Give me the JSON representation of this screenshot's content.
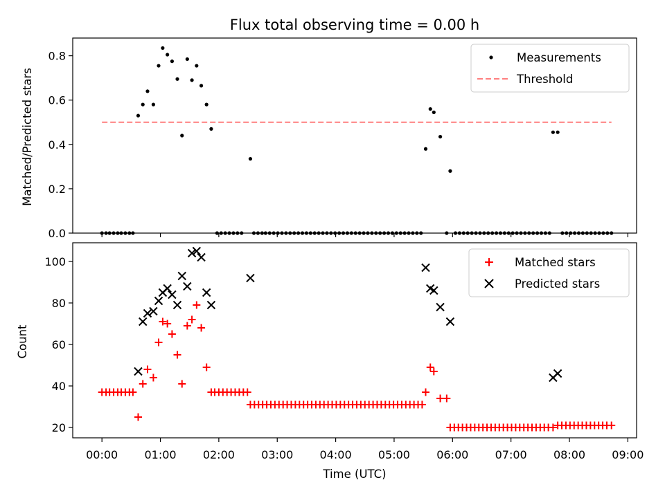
{
  "chart_data": [
    {
      "type": "scatter",
      "title": "Flux total observing time = 0.00 h",
      "xlabel": "",
      "ylabel": "Matched/Predicted stars",
      "xlim_hours": [
        -0.5,
        9.15
      ],
      "ylim": [
        0,
        0.88
      ],
      "yticks": [
        0.0,
        0.2,
        0.4,
        0.6,
        0.8
      ],
      "ytick_labels": [
        "0.0",
        "0.2",
        "0.4",
        "0.6",
        "0.8"
      ],
      "legend_position": "top-right",
      "legend": [
        "Measurements",
        "Threshold"
      ],
      "series": [
        {
          "name": "Measurements",
          "color": "#000000",
          "marker": "dot",
          "points": [
            [
              0.0,
              0.0
            ],
            [
              0.07,
              0.0
            ],
            [
              0.13,
              0.0
            ],
            [
              0.2,
              0.0
            ],
            [
              0.27,
              0.0
            ],
            [
              0.33,
              0.0
            ],
            [
              0.4,
              0.0
            ],
            [
              0.47,
              0.0
            ],
            [
              0.53,
              0.0
            ],
            [
              0.62,
              0.53
            ],
            [
              0.7,
              0.58
            ],
            [
              0.78,
              0.64
            ],
            [
              0.88,
              0.58
            ],
            [
              0.97,
              0.755
            ],
            [
              1.04,
              0.835
            ],
            [
              1.12,
              0.805
            ],
            [
              1.2,
              0.775
            ],
            [
              1.29,
              0.695
            ],
            [
              1.37,
              0.44
            ],
            [
              1.46,
              0.785
            ],
            [
              1.54,
              0.69
            ],
            [
              1.62,
              0.755
            ],
            [
              1.7,
              0.665
            ],
            [
              1.79,
              0.58
            ],
            [
              1.87,
              0.47
            ],
            [
              1.97,
              0.0
            ],
            [
              2.04,
              0.0
            ],
            [
              2.11,
              0.0
            ],
            [
              2.18,
              0.0
            ],
            [
              2.25,
              0.0
            ],
            [
              2.32,
              0.0
            ],
            [
              2.39,
              0.0
            ],
            [
              2.54,
              0.335
            ],
            [
              2.6,
              0.0
            ],
            [
              2.67,
              0.0
            ],
            [
              2.74,
              0.0
            ],
            [
              2.8,
              0.0
            ],
            [
              2.87,
              0.0
            ],
            [
              2.94,
              0.0
            ],
            [
              3.01,
              0.0
            ],
            [
              3.08,
              0.0
            ],
            [
              3.15,
              0.0
            ],
            [
              3.22,
              0.0
            ],
            [
              3.29,
              0.0
            ],
            [
              3.36,
              0.0
            ],
            [
              3.43,
              0.0
            ],
            [
              3.5,
              0.0
            ],
            [
              3.57,
              0.0
            ],
            [
              3.64,
              0.0
            ],
            [
              3.71,
              0.0
            ],
            [
              3.78,
              0.0
            ],
            [
              3.85,
              0.0
            ],
            [
              3.92,
              0.0
            ],
            [
              3.99,
              0.0
            ],
            [
              4.06,
              0.0
            ],
            [
              4.13,
              0.0
            ],
            [
              4.2,
              0.0
            ],
            [
              4.27,
              0.0
            ],
            [
              4.34,
              0.0
            ],
            [
              4.41,
              0.0
            ],
            [
              4.48,
              0.0
            ],
            [
              4.55,
              0.0
            ],
            [
              4.62,
              0.0
            ],
            [
              4.69,
              0.0
            ],
            [
              4.76,
              0.0
            ],
            [
              4.83,
              0.0
            ],
            [
              4.9,
              0.0
            ],
            [
              4.97,
              0.0
            ],
            [
              5.04,
              0.0
            ],
            [
              5.11,
              0.0
            ],
            [
              5.18,
              0.0
            ],
            [
              5.25,
              0.0
            ],
            [
              5.32,
              0.0
            ],
            [
              5.39,
              0.0
            ],
            [
              5.46,
              0.0
            ],
            [
              5.54,
              0.38
            ],
            [
              5.62,
              0.56
            ],
            [
              5.68,
              0.545
            ],
            [
              5.79,
              0.435
            ],
            [
              5.96,
              0.28
            ],
            [
              5.9,
              0.0
            ],
            [
              6.05,
              0.0
            ],
            [
              6.12,
              0.0
            ],
            [
              6.19,
              0.0
            ],
            [
              6.26,
              0.0
            ],
            [
              6.33,
              0.0
            ],
            [
              6.4,
              0.0
            ],
            [
              6.47,
              0.0
            ],
            [
              6.54,
              0.0
            ],
            [
              6.61,
              0.0
            ],
            [
              6.68,
              0.0
            ],
            [
              6.75,
              0.0
            ],
            [
              6.82,
              0.0
            ],
            [
              6.89,
              0.0
            ],
            [
              6.96,
              0.0
            ],
            [
              7.03,
              0.0
            ],
            [
              7.1,
              0.0
            ],
            [
              7.17,
              0.0
            ],
            [
              7.24,
              0.0
            ],
            [
              7.31,
              0.0
            ],
            [
              7.38,
              0.0
            ],
            [
              7.45,
              0.0
            ],
            [
              7.52,
              0.0
            ],
            [
              7.59,
              0.0
            ],
            [
              7.66,
              0.0
            ],
            [
              7.72,
              0.455
            ],
            [
              7.8,
              0.455
            ],
            [
              7.88,
              0.0
            ],
            [
              7.95,
              0.0
            ],
            [
              8.02,
              0.0
            ],
            [
              8.09,
              0.0
            ],
            [
              8.16,
              0.0
            ],
            [
              8.23,
              0.0
            ],
            [
              8.3,
              0.0
            ],
            [
              8.37,
              0.0
            ],
            [
              8.44,
              0.0
            ],
            [
              8.51,
              0.0
            ],
            [
              8.58,
              0.0
            ],
            [
              8.65,
              0.0
            ],
            [
              8.72,
              0.0
            ]
          ]
        },
        {
          "name": "Threshold",
          "color": "#ff7f7f",
          "style": "dashed",
          "x_range": [
            0.0,
            8.72
          ],
          "y": 0.5
        }
      ]
    },
    {
      "type": "scatter",
      "title": "",
      "xlabel": "Time (UTC)",
      "ylabel": "Count",
      "xlim_hours": [
        -0.5,
        9.15
      ],
      "ylim": [
        15,
        109
      ],
      "yticks": [
        20,
        40,
        60,
        80,
        100
      ],
      "ytick_labels": [
        "20",
        "40",
        "60",
        "80",
        "100"
      ],
      "xticks_hours": [
        0,
        1,
        2,
        3,
        4,
        5,
        6,
        7,
        8,
        9
      ],
      "xtick_labels": [
        "00:00",
        "01:00",
        "02:00",
        "03:00",
        "04:00",
        "05:00",
        "06:00",
        "07:00",
        "08:00",
        "09:00"
      ],
      "legend_position": "top-right",
      "legend": [
        "Matched stars",
        "Predicted stars"
      ],
      "series": [
        {
          "name": "Matched stars",
          "color": "#ff0000",
          "marker": "plus",
          "points": [
            [
              0.0,
              37
            ],
            [
              0.07,
              37
            ],
            [
              0.13,
              37
            ],
            [
              0.2,
              37
            ],
            [
              0.27,
              37
            ],
            [
              0.33,
              37
            ],
            [
              0.4,
              37
            ],
            [
              0.47,
              37
            ],
            [
              0.53,
              37
            ],
            [
              0.62,
              25
            ],
            [
              0.7,
              41
            ],
            [
              0.78,
              48
            ],
            [
              0.88,
              44
            ],
            [
              0.97,
              61
            ],
            [
              1.04,
              71
            ],
            [
              1.12,
              70
            ],
            [
              1.2,
              65
            ],
            [
              1.29,
              55
            ],
            [
              1.37,
              41
            ],
            [
              1.46,
              69
            ],
            [
              1.54,
              72
            ],
            [
              1.62,
              79
            ],
            [
              1.7,
              68
            ],
            [
              1.79,
              49
            ],
            [
              1.87,
              37
            ],
            [
              1.93,
              37
            ],
            [
              2.0,
              37
            ],
            [
              2.07,
              37
            ],
            [
              2.14,
              37
            ],
            [
              2.21,
              37
            ],
            [
              2.28,
              37
            ],
            [
              2.35,
              37
            ],
            [
              2.42,
              37
            ],
            [
              2.49,
              37
            ],
            [
              2.54,
              31
            ],
            [
              2.61,
              31
            ],
            [
              2.68,
              31
            ],
            [
              2.75,
              31
            ],
            [
              2.82,
              31
            ],
            [
              2.89,
              31
            ],
            [
              2.96,
              31
            ],
            [
              3.03,
              31
            ],
            [
              3.1,
              31
            ],
            [
              3.17,
              31
            ],
            [
              3.24,
              31
            ],
            [
              3.31,
              31
            ],
            [
              3.38,
              31
            ],
            [
              3.45,
              31
            ],
            [
              3.52,
              31
            ],
            [
              3.59,
              31
            ],
            [
              3.66,
              31
            ],
            [
              3.73,
              31
            ],
            [
              3.8,
              31
            ],
            [
              3.87,
              31
            ],
            [
              3.94,
              31
            ],
            [
              4.01,
              31
            ],
            [
              4.08,
              31
            ],
            [
              4.15,
              31
            ],
            [
              4.22,
              31
            ],
            [
              4.29,
              31
            ],
            [
              4.36,
              31
            ],
            [
              4.43,
              31
            ],
            [
              4.5,
              31
            ],
            [
              4.57,
              31
            ],
            [
              4.64,
              31
            ],
            [
              4.71,
              31
            ],
            [
              4.78,
              31
            ],
            [
              4.85,
              31
            ],
            [
              4.92,
              31
            ],
            [
              4.99,
              31
            ],
            [
              5.06,
              31
            ],
            [
              5.13,
              31
            ],
            [
              5.2,
              31
            ],
            [
              5.27,
              31
            ],
            [
              5.34,
              31
            ],
            [
              5.41,
              31
            ],
            [
              5.48,
              31
            ],
            [
              5.54,
              37
            ],
            [
              5.62,
              49
            ],
            [
              5.68,
              47
            ],
            [
              5.79,
              34
            ],
            [
              5.9,
              34
            ],
            [
              5.96,
              20
            ],
            [
              6.03,
              20
            ],
            [
              6.1,
              20
            ],
            [
              6.17,
              20
            ],
            [
              6.24,
              20
            ],
            [
              6.31,
              20
            ],
            [
              6.38,
              20
            ],
            [
              6.45,
              20
            ],
            [
              6.52,
              20
            ],
            [
              6.59,
              20
            ],
            [
              6.66,
              20
            ],
            [
              6.73,
              20
            ],
            [
              6.8,
              20
            ],
            [
              6.87,
              20
            ],
            [
              6.94,
              20
            ],
            [
              7.01,
              20
            ],
            [
              7.08,
              20
            ],
            [
              7.15,
              20
            ],
            [
              7.22,
              20
            ],
            [
              7.29,
              20
            ],
            [
              7.36,
              20
            ],
            [
              7.43,
              20
            ],
            [
              7.5,
              20
            ],
            [
              7.57,
              20
            ],
            [
              7.64,
              20
            ],
            [
              7.72,
              20
            ],
            [
              7.8,
              21
            ],
            [
              7.87,
              21
            ],
            [
              7.94,
              21
            ],
            [
              8.01,
              21
            ],
            [
              8.08,
              21
            ],
            [
              8.15,
              21
            ],
            [
              8.22,
              21
            ],
            [
              8.29,
              21
            ],
            [
              8.36,
              21
            ],
            [
              8.43,
              21
            ],
            [
              8.5,
              21
            ],
            [
              8.57,
              21
            ],
            [
              8.64,
              21
            ],
            [
              8.72,
              21
            ]
          ]
        },
        {
          "name": "Predicted stars",
          "color": "#000000",
          "marker": "x",
          "points": [
            [
              0.62,
              47
            ],
            [
              0.7,
              71
            ],
            [
              0.78,
              75
            ],
            [
              0.88,
              76
            ],
            [
              0.97,
              81
            ],
            [
              1.04,
              85
            ],
            [
              1.12,
              87
            ],
            [
              1.2,
              84
            ],
            [
              1.29,
              79
            ],
            [
              1.37,
              93
            ],
            [
              1.46,
              88
            ],
            [
              1.54,
              104
            ],
            [
              1.62,
              105
            ],
            [
              1.7,
              102
            ],
            [
              1.79,
              85
            ],
            [
              1.87,
              79
            ],
            [
              2.54,
              92
            ],
            [
              5.54,
              97
            ],
            [
              5.62,
              87
            ],
            [
              5.68,
              86
            ],
            [
              5.79,
              78
            ],
            [
              5.96,
              71
            ],
            [
              7.72,
              44
            ],
            [
              7.8,
              46
            ]
          ]
        }
      ]
    }
  ]
}
